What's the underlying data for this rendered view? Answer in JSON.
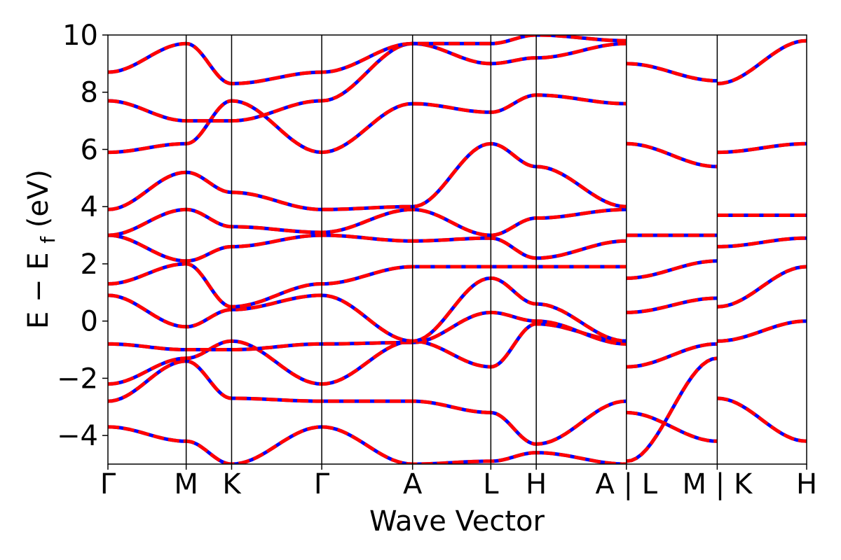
{
  "chart_data": {
    "type": "line",
    "title": "",
    "xlabel": "Wave Vector",
    "ylabel": {
      "main": "E − E",
      "subscript": "f",
      "unit": " (eV)"
    },
    "ylim": [
      -5,
      10
    ],
    "yticks": [
      -4,
      -2,
      0,
      2,
      4,
      6,
      8,
      10
    ],
    "ytick_labels": [
      "−4",
      "−2",
      "0",
      "2",
      "4",
      "6",
      "8",
      "10"
    ],
    "x_range": [
      0,
      1
    ],
    "kpoints": [
      {
        "label": "Γ",
        "x": 0.0
      },
      {
        "label": "M",
        "x": 0.112
      },
      {
        "label": "K",
        "x": 0.177
      },
      {
        "label": "Γ",
        "x": 0.306
      },
      {
        "label": "A",
        "x": 0.436
      },
      {
        "label": "L",
        "x": 0.548
      },
      {
        "label": "H",
        "x": 0.613
      },
      {
        "label": "A | L",
        "x": 0.742
      },
      {
        "label": "M | K",
        "x": 0.872
      },
      {
        "label": "H",
        "x": 1.0
      }
    ],
    "series_styles": [
      {
        "color": "#0000ff",
        "linestyle": "solid"
      },
      {
        "color": "#ff0000",
        "linestyle": "dashed"
      }
    ],
    "bands": [
      {
        "x": [
          0.0,
          0.112,
          0.177,
          0.306,
          0.436,
          0.548,
          0.613,
          0.742
        ],
        "y": [
          -2.8,
          -1.4,
          -2.7,
          -2.8,
          -2.8,
          -3.2,
          -4.3,
          -2.8
        ]
      },
      {
        "x": [
          0.0,
          0.112,
          0.177,
          0.306,
          0.436,
          0.548,
          0.613,
          0.742
        ],
        "y": [
          -2.2,
          -1.3,
          -0.7,
          -2.2,
          -0.7,
          -1.6,
          -0.1,
          -0.7
        ]
      },
      {
        "x": [
          0.0,
          0.112,
          0.177,
          0.306,
          0.436,
          0.548,
          0.613,
          0.742
        ],
        "y": [
          -0.8,
          -1.0,
          -1.0,
          -0.8,
          -0.75,
          0.3,
          0.0,
          -0.8
        ]
      },
      {
        "x": [
          0.0,
          0.112,
          0.177,
          0.306,
          0.436,
          0.548,
          0.613,
          0.742
        ],
        "y": [
          0.9,
          -0.2,
          0.4,
          0.9,
          -0.7,
          1.5,
          0.6,
          -0.7
        ]
      },
      {
        "x": [
          0.0,
          0.112,
          0.177,
          0.306,
          0.436,
          0.548,
          0.613,
          0.742
        ],
        "y": [
          1.3,
          2.0,
          0.5,
          1.3,
          1.9,
          1.9,
          1.9,
          1.9
        ]
      },
      {
        "x": [
          0.0,
          0.112,
          0.177,
          0.306,
          0.436,
          0.548,
          0.613,
          0.742
        ],
        "y": [
          3.0,
          2.1,
          2.6,
          3.0,
          2.8,
          2.9,
          2.2,
          2.8
        ]
      },
      {
        "x": [
          0.0,
          0.112,
          0.177,
          0.306,
          0.436,
          0.548,
          0.613,
          0.742
        ],
        "y": [
          3.0,
          3.9,
          3.3,
          3.1,
          3.9,
          3.0,
          3.6,
          3.9
        ]
      },
      {
        "x": [
          0.0,
          0.112,
          0.177,
          0.306,
          0.436,
          0.548,
          0.613,
          0.742
        ],
        "y": [
          3.9,
          5.2,
          4.5,
          3.9,
          4.0,
          6.2,
          5.4,
          4.0
        ]
      },
      {
        "x": [
          0.0,
          0.112,
          0.177,
          0.306,
          0.436,
          0.548,
          0.613,
          0.742
        ],
        "y": [
          5.9,
          6.2,
          7.7,
          5.9,
          7.6,
          7.3,
          7.9,
          7.6
        ]
      },
      {
        "x": [
          0.0,
          0.112,
          0.177,
          0.306,
          0.436,
          0.548,
          0.613,
          0.742
        ],
        "y": [
          7.7,
          7.0,
          7.0,
          7.7,
          9.7,
          9.0,
          9.2,
          9.7
        ]
      },
      {
        "x": [
          0.0,
          0.112,
          0.177,
          0.306,
          0.436,
          0.548,
          0.613,
          0.742
        ],
        "y": [
          8.7,
          9.7,
          8.3,
          8.7,
          9.7,
          9.7,
          10.0,
          9.8
        ]
      },
      {
        "x": [
          0.0,
          0.112,
          0.177,
          0.306,
          0.436,
          0.548,
          0.613,
          0.742
        ],
        "y": [
          -3.7,
          -4.2,
          -5.0,
          -3.7,
          -5.0,
          -4.9,
          -4.6,
          -5.0
        ]
      },
      {
        "x": [
          0.742,
          0.872
        ],
        "y": [
          -4.9,
          -1.3
        ]
      },
      {
        "x": [
          0.742,
          0.872
        ],
        "y": [
          -3.2,
          -4.2
        ]
      },
      {
        "x": [
          0.742,
          0.872
        ],
        "y": [
          -1.6,
          -0.8
        ]
      },
      {
        "x": [
          0.742,
          0.872
        ],
        "y": [
          0.3,
          0.8
        ]
      },
      {
        "x": [
          0.742,
          0.872
        ],
        "y": [
          1.5,
          2.1
        ]
      },
      {
        "x": [
          0.742,
          0.872
        ],
        "y": [
          3.0,
          3.0
        ]
      },
      {
        "x": [
          0.742,
          0.872
        ],
        "y": [
          6.2,
          5.4
        ]
      },
      {
        "x": [
          0.742,
          0.872
        ],
        "y": [
          9.0,
          8.4
        ]
      },
      {
        "x": [
          0.872,
          1.0
        ],
        "y": [
          -2.7,
          -4.2
        ]
      },
      {
        "x": [
          0.872,
          1.0
        ],
        "y": [
          -0.7,
          0.0
        ]
      },
      {
        "x": [
          0.872,
          1.0
        ],
        "y": [
          0.5,
          1.9
        ]
      },
      {
        "x": [
          0.872,
          1.0
        ],
        "y": [
          2.6,
          2.9
        ]
      },
      {
        "x": [
          0.872,
          1.0
        ],
        "y": [
          3.7,
          3.7
        ]
      },
      {
        "x": [
          0.872,
          1.0
        ],
        "y": [
          5.9,
          6.2
        ]
      },
      {
        "x": [
          0.872,
          1.0
        ],
        "y": [
          8.3,
          9.8
        ]
      }
    ]
  }
}
